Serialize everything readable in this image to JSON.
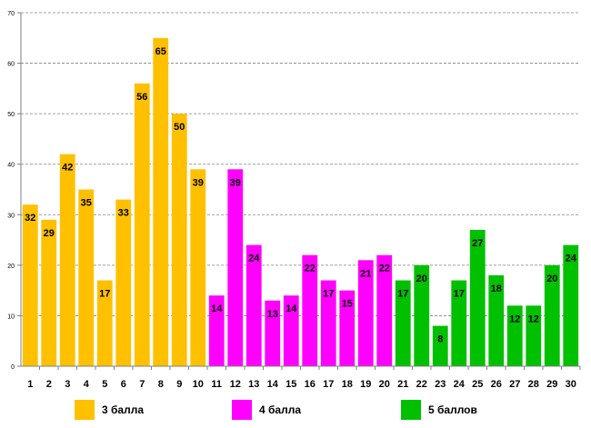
{
  "chart_data": {
    "type": "bar",
    "title": "",
    "xlabel": "",
    "ylabel": "",
    "ylim": [
      0,
      70
    ],
    "yticks": [
      0,
      10,
      20,
      30,
      40,
      50,
      60,
      70
    ],
    "grid": true,
    "categories": [
      "1",
      "2",
      "3",
      "4",
      "5",
      "6",
      "7",
      "8",
      "9",
      "10",
      "11",
      "12",
      "13",
      "14",
      "15",
      "16",
      "17",
      "18",
      "19",
      "20",
      "21",
      "22",
      "23",
      "24",
      "25",
      "26",
      "27",
      "28",
      "29",
      "30"
    ],
    "values": [
      32,
      29,
      42,
      35,
      17,
      33,
      56,
      65,
      50,
      39,
      14,
      39,
      24,
      13,
      14,
      22,
      17,
      15,
      21,
      22,
      17,
      20,
      8,
      17,
      27,
      18,
      12,
      12,
      20,
      24
    ],
    "groups": [
      0,
      0,
      0,
      0,
      0,
      0,
      0,
      0,
      0,
      0,
      1,
      1,
      1,
      1,
      1,
      1,
      1,
      1,
      1,
      1,
      2,
      2,
      2,
      2,
      2,
      2,
      2,
      2,
      2,
      2
    ],
    "series": [
      {
        "name": "3 балла",
        "color": "#FFC000"
      },
      {
        "name": "4 балла",
        "color": "#FF00FF"
      },
      {
        "name": "5 баллов",
        "color": "#00C000"
      }
    ]
  }
}
